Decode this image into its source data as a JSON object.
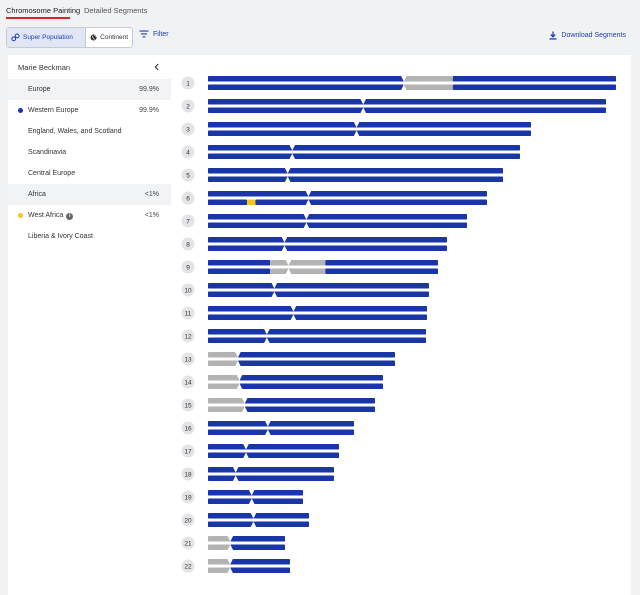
{
  "tabs": [
    {
      "label": "Chromosome Painting",
      "active": true
    },
    {
      "label": "Detailed Segments",
      "active": false
    }
  ],
  "toolbar": {
    "super_population_label": "Super Population",
    "continent_label": "Continent",
    "filter_label": "Filter",
    "download_label": "Download Segments"
  },
  "sidebar": {
    "name": "Marie Beckman",
    "collapse_icon": "chevron-left-icon",
    "rows": [
      {
        "label": "Europe",
        "pct": "99.9%",
        "shaded": true,
        "dot": null
      },
      {
        "label": "Western Europe",
        "pct": "99.9%",
        "shaded": false,
        "dot": "#1a35a8"
      },
      {
        "label": "England, Wales, and Scotland",
        "pct": "",
        "shaded": false,
        "dot": null
      },
      {
        "label": "Scandinavia",
        "pct": "",
        "shaded": false,
        "dot": null
      },
      {
        "label": "Central Europe",
        "pct": "",
        "shaded": false,
        "dot": null
      },
      {
        "label": "Africa",
        "pct": "<1%",
        "shaded": true,
        "dot": null
      },
      {
        "label": "West Africa",
        "pct": "<1%",
        "shaded": false,
        "dot": "#f5c518",
        "info": "i"
      },
      {
        "label": "Liberia & Ivory Coast",
        "pct": "",
        "shaded": false,
        "dot": null
      }
    ]
  },
  "colors": {
    "blue": "#1a35a8",
    "gray": "#b3b3b3",
    "yellow": "#f5c518",
    "accent": "#d6242a"
  },
  "chromosomes": [
    {
      "n": "1",
      "cent": 0.48,
      "top": [
        [
          "blue",
          0,
          0.48
        ],
        [
          "gray",
          0.48,
          0.6
        ],
        [
          "blue",
          0.6,
          1
        ]
      ],
      "bottom": [
        [
          "blue",
          0,
          0.48
        ],
        [
          "gray",
          0.48,
          0.6
        ],
        [
          "blue",
          0.6,
          1
        ]
      ]
    },
    {
      "n": "2",
      "cent": 0.39
    },
    {
      "n": "3",
      "cent": 0.46
    },
    {
      "n": "4",
      "cent": 0.27
    },
    {
      "n": "5",
      "cent": 0.27
    },
    {
      "n": "6",
      "cent": 0.36,
      "bottom": [
        [
          "blue",
          0,
          0.14
        ],
        [
          "yellow",
          0.14,
          0.17
        ],
        [
          "blue",
          0.17,
          1
        ]
      ]
    },
    {
      "n": "7",
      "cent": 0.38
    },
    {
      "n": "8",
      "cent": 0.32
    },
    {
      "n": "9",
      "cent": 0.35,
      "top": [
        [
          "blue",
          0,
          0.27
        ],
        [
          "gray",
          0.27,
          0.51
        ],
        [
          "blue",
          0.51,
          1
        ]
      ],
      "bottom": [
        [
          "blue",
          0,
          0.27
        ],
        [
          "gray",
          0.27,
          0.51
        ],
        [
          "blue",
          0.51,
          1
        ]
      ]
    },
    {
      "n": "10",
      "cent": 0.3
    },
    {
      "n": "11",
      "cent": 0.39
    },
    {
      "n": "12",
      "cent": 0.27
    },
    {
      "n": "13",
      "cent": 0.16,
      "top": [
        [
          "gray",
          0,
          0.16
        ],
        [
          "blue",
          0.16,
          1
        ]
      ],
      "bottom": [
        [
          "gray",
          0,
          0.16
        ],
        [
          "blue",
          0.16,
          1
        ]
      ]
    },
    {
      "n": "14",
      "cent": 0.18,
      "top": [
        [
          "gray",
          0,
          0.18
        ],
        [
          "blue",
          0.18,
          1
        ]
      ],
      "bottom": [
        [
          "gray",
          0,
          0.18
        ],
        [
          "blue",
          0.18,
          1
        ]
      ]
    },
    {
      "n": "15",
      "cent": 0.22,
      "top": [
        [
          "gray",
          0,
          0.22
        ],
        [
          "blue",
          0.22,
          1
        ]
      ],
      "bottom": [
        [
          "gray",
          0,
          0.22
        ],
        [
          "blue",
          0.22,
          1
        ]
      ]
    },
    {
      "n": "16",
      "cent": 0.41
    },
    {
      "n": "17",
      "cent": 0.29
    },
    {
      "n": "18",
      "cent": 0.22
    },
    {
      "n": "19",
      "cent": 0.46
    },
    {
      "n": "20",
      "cent": 0.45
    },
    {
      "n": "21",
      "cent": 0.29,
      "top": [
        [
          "gray",
          0,
          0.29
        ],
        [
          "blue",
          0.29,
          1
        ]
      ],
      "bottom": [
        [
          "gray",
          0,
          0.29
        ],
        [
          "blue",
          0.29,
          1
        ]
      ]
    },
    {
      "n": "22",
      "cent": 0.27,
      "top": [
        [
          "gray",
          0,
          0.27
        ],
        [
          "blue",
          0.27,
          1
        ]
      ],
      "bottom": [
        [
          "gray",
          0,
          0.27
        ],
        [
          "blue",
          0.27,
          1
        ]
      ]
    }
  ]
}
